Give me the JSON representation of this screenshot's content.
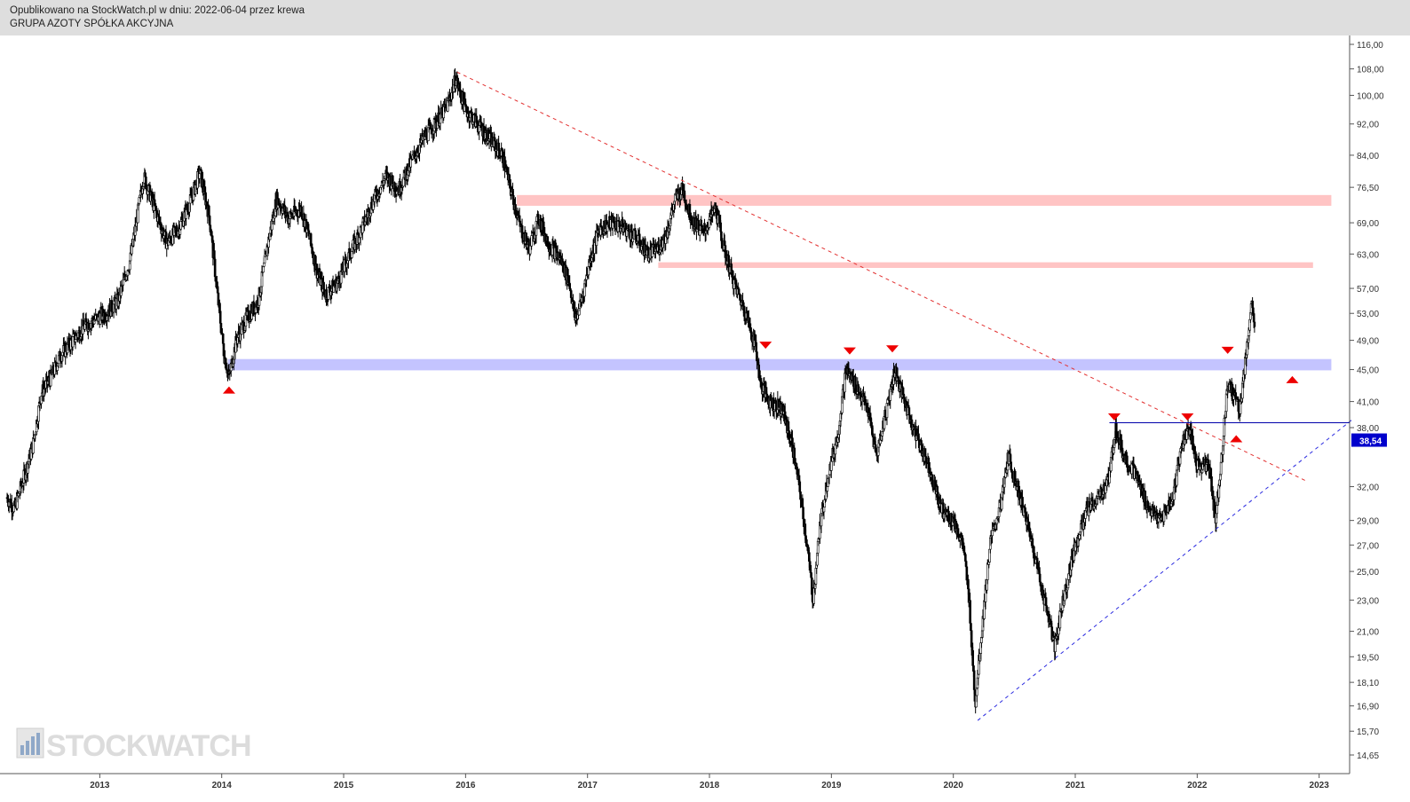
{
  "header": {
    "published": "Opublikowano na StockWatch.pl w dniu: 2022-06-04 przez krewa",
    "instrument": "GRUPA AZOTY SPÓŁKA AKCYJNA"
  },
  "watermark": {
    "text": "STOCKWATCH",
    "icon": "bar-chart-logo-icon"
  },
  "chart_data": {
    "type": "candlestick",
    "scale": "log",
    "ylim": [
      14.65,
      116.0
    ],
    "xlim": [
      2012.24,
      2023.25
    ],
    "y_ticks": [
      {
        "v": 116.0,
        "label": "116,00"
      },
      {
        "v": 108.0,
        "label": "108,00"
      },
      {
        "v": 100.0,
        "label": "100,00"
      },
      {
        "v": 92.0,
        "label": "92,00"
      },
      {
        "v": 84.0,
        "label": "84,00"
      },
      {
        "v": 76.5,
        "label": "76,50"
      },
      {
        "v": 69.0,
        "label": "69,00"
      },
      {
        "v": 63.0,
        "label": "63,00"
      },
      {
        "v": 57.0,
        "label": "57,00"
      },
      {
        "v": 53.0,
        "label": "53,00"
      },
      {
        "v": 49.0,
        "label": "49,00"
      },
      {
        "v": 45.0,
        "label": "45,00"
      },
      {
        "v": 41.0,
        "label": "41,00"
      },
      {
        "v": 38.0,
        "label": "38,00"
      },
      {
        "v": 32.0,
        "label": "32,00"
      },
      {
        "v": 29.0,
        "label": "29,00"
      },
      {
        "v": 27.0,
        "label": "27,00"
      },
      {
        "v": 25.0,
        "label": "25,00"
      },
      {
        "v": 23.0,
        "label": "23,00"
      },
      {
        "v": 21.0,
        "label": "21,00"
      },
      {
        "v": 19.5,
        "label": "19,50"
      },
      {
        "v": 18.1,
        "label": "18,10"
      },
      {
        "v": 16.9,
        "label": "16,90"
      },
      {
        "v": 15.7,
        "label": "15,70"
      },
      {
        "v": 14.65,
        "label": "14,65"
      }
    ],
    "x_ticks": [
      {
        "v": 2013,
        "label": "2013"
      },
      {
        "v": 2014,
        "label": "2014"
      },
      {
        "v": 2015,
        "label": "2015"
      },
      {
        "v": 2016,
        "label": "2016"
      },
      {
        "v": 2017,
        "label": "2017"
      },
      {
        "v": 2018,
        "label": "2018"
      },
      {
        "v": 2019,
        "label": "2019"
      },
      {
        "v": 2020,
        "label": "2020"
      },
      {
        "v": 2021,
        "label": "2021"
      },
      {
        "v": 2022,
        "label": "2022"
      },
      {
        "v": 2023,
        "label": "2023"
      }
    ],
    "last_price": {
      "value": 38.54,
      "label": "38,54",
      "color": "#0000cc"
    },
    "price_path": [
      [
        2012.24,
        31.0
      ],
      [
        2012.3,
        30.0
      ],
      [
        2012.38,
        33.0
      ],
      [
        2012.45,
        36.0
      ],
      [
        2012.52,
        42.0
      ],
      [
        2012.6,
        44.0
      ],
      [
        2012.68,
        47.0
      ],
      [
        2012.78,
        49.0
      ],
      [
        2012.87,
        51.0
      ],
      [
        2012.95,
        52.0
      ],
      [
        2013.05,
        53.0
      ],
      [
        2013.15,
        55.0
      ],
      [
        2013.25,
        62.0
      ],
      [
        2013.36,
        79.0
      ],
      [
        2013.45,
        72.0
      ],
      [
        2013.55,
        65.0
      ],
      [
        2013.65,
        68.0
      ],
      [
        2013.75,
        74.0
      ],
      [
        2013.82,
        80.0
      ],
      [
        2013.9,
        70.0
      ],
      [
        2013.97,
        55.0
      ],
      [
        2014.02,
        47.0
      ],
      [
        2014.06,
        44.0
      ],
      [
        2014.12,
        49.0
      ],
      [
        2014.2,
        52.0
      ],
      [
        2014.3,
        55.0
      ],
      [
        2014.38,
        65.0
      ],
      [
        2014.45,
        74.0
      ],
      [
        2014.55,
        70.0
      ],
      [
        2014.65,
        72.0
      ],
      [
        2014.72,
        66.0
      ],
      [
        2014.78,
        60.0
      ],
      [
        2014.85,
        56.0
      ],
      [
        2014.95,
        58.0
      ],
      [
        2015.05,
        63.0
      ],
      [
        2015.15,
        68.0
      ],
      [
        2015.25,
        74.0
      ],
      [
        2015.35,
        79.0
      ],
      [
        2015.45,
        76.0
      ],
      [
        2015.55,
        82.0
      ],
      [
        2015.65,
        88.0
      ],
      [
        2015.75,
        92.0
      ],
      [
        2015.85,
        97.0
      ],
      [
        2015.92,
        105.0
      ],
      [
        2016.0,
        96.0
      ],
      [
        2016.1,
        92.0
      ],
      [
        2016.2,
        88.0
      ],
      [
        2016.3,
        84.0
      ],
      [
        2016.38,
        75.0
      ],
      [
        2016.45,
        68.0
      ],
      [
        2016.52,
        64.0
      ],
      [
        2016.6,
        70.0
      ],
      [
        2016.68,
        65.0
      ],
      [
        2016.78,
        62.0
      ],
      [
        2016.85,
        58.0
      ],
      [
        2016.9,
        52.0
      ],
      [
        2016.95,
        55.0
      ],
      [
        2017.02,
        62.0
      ],
      [
        2017.1,
        68.0
      ],
      [
        2017.2,
        69.0
      ],
      [
        2017.3,
        68.0
      ],
      [
        2017.4,
        66.0
      ],
      [
        2017.5,
        63.0
      ],
      [
        2017.58,
        64.0
      ],
      [
        2017.65,
        67.0
      ],
      [
        2017.72,
        74.0
      ],
      [
        2017.78,
        76.0
      ],
      [
        2017.85,
        70.0
      ],
      [
        2017.95,
        67.0
      ],
      [
        2018.05,
        72.0
      ],
      [
        2018.12,
        64.0
      ],
      [
        2018.2,
        58.0
      ],
      [
        2018.3,
        53.0
      ],
      [
        2018.38,
        48.0
      ],
      [
        2018.42,
        43.0
      ],
      [
        2018.5,
        41.0
      ],
      [
        2018.6,
        40.0
      ],
      [
        2018.68,
        36.0
      ],
      [
        2018.75,
        31.0
      ],
      [
        2018.8,
        27.0
      ],
      [
        2018.85,
        23.0
      ],
      [
        2018.9,
        28.0
      ],
      [
        2018.97,
        33.0
      ],
      [
        2019.05,
        37.0
      ],
      [
        2019.12,
        45.0
      ],
      [
        2019.2,
        43.0
      ],
      [
        2019.3,
        40.0
      ],
      [
        2019.37,
        35.0
      ],
      [
        2019.45,
        40.0
      ],
      [
        2019.52,
        45.0
      ],
      [
        2019.6,
        41.0
      ],
      [
        2019.7,
        37.0
      ],
      [
        2019.8,
        34.0
      ],
      [
        2019.9,
        30.0
      ],
      [
        2020.0,
        29.0
      ],
      [
        2020.08,
        27.0
      ],
      [
        2020.13,
        23.0
      ],
      [
        2020.18,
        17.0
      ],
      [
        2020.22,
        20.0
      ],
      [
        2020.3,
        27.0
      ],
      [
        2020.4,
        31.0
      ],
      [
        2020.45,
        35.0
      ],
      [
        2020.55,
        31.0
      ],
      [
        2020.65,
        27.0
      ],
      [
        2020.72,
        24.0
      ],
      [
        2020.78,
        22.0
      ],
      [
        2020.83,
        20.0
      ],
      [
        2020.9,
        23.0
      ],
      [
        2021.0,
        27.0
      ],
      [
        2021.1,
        30.0
      ],
      [
        2021.2,
        31.0
      ],
      [
        2021.28,
        33.0
      ],
      [
        2021.33,
        38.0
      ],
      [
        2021.4,
        35.0
      ],
      [
        2021.5,
        33.0
      ],
      [
        2021.6,
        30.0
      ],
      [
        2021.7,
        29.0
      ],
      [
        2021.8,
        31.0
      ],
      [
        2021.87,
        36.0
      ],
      [
        2021.93,
        38.0
      ],
      [
        2022.0,
        34.0
      ],
      [
        2022.1,
        34.0
      ],
      [
        2022.15,
        29.0
      ],
      [
        2022.2,
        35.0
      ],
      [
        2022.25,
        43.0
      ],
      [
        2022.3,
        42.0
      ],
      [
        2022.35,
        40.0
      ],
      [
        2022.4,
        47.0
      ],
      [
        2022.45,
        55.0
      ],
      [
        2022.47,
        50.0
      ]
    ],
    "zones": [
      {
        "x0": 2016.42,
        "x1": 2023.1,
        "y0": 72.5,
        "y1": 74.8,
        "color": "#ffc4c4"
      },
      {
        "x0": 2017.58,
        "x1": 2022.95,
        "y0": 60.5,
        "y1": 61.5,
        "color": "#ffc4c4"
      },
      {
        "x0": 2014.05,
        "x1": 2023.1,
        "y0": 44.9,
        "y1": 46.4,
        "color": "#c4c4ff"
      }
    ],
    "lines": [
      {
        "x1": 2015.93,
        "y1": 107.0,
        "x2": 2022.9,
        "y2": 32.5,
        "color": "#e23030",
        "dash": "4,4"
      },
      {
        "x1": 2020.2,
        "y1": 16.2,
        "x2": 2023.28,
        "y2": 39.0,
        "color": "#2a2ae0",
        "dash": "4,4"
      },
      {
        "x1": 2021.28,
        "y1": 38.54,
        "x2": 2023.25,
        "y2": 38.54,
        "color": "#0000aa",
        "dash": ""
      }
    ],
    "markers": [
      {
        "x": 2014.06,
        "y": 42.4,
        "dir": "up"
      },
      {
        "x": 2018.46,
        "y": 48.3,
        "dir": "down"
      },
      {
        "x": 2019.15,
        "y": 47.5,
        "dir": "down"
      },
      {
        "x": 2019.5,
        "y": 47.8,
        "dir": "down"
      },
      {
        "x": 2021.32,
        "y": 39.2,
        "dir": "down"
      },
      {
        "x": 2021.92,
        "y": 39.2,
        "dir": "down"
      },
      {
        "x": 2022.25,
        "y": 47.6,
        "dir": "down"
      },
      {
        "x": 2022.32,
        "y": 36.8,
        "dir": "up"
      },
      {
        "x": 2022.78,
        "y": 43.7,
        "dir": "up"
      }
    ]
  }
}
